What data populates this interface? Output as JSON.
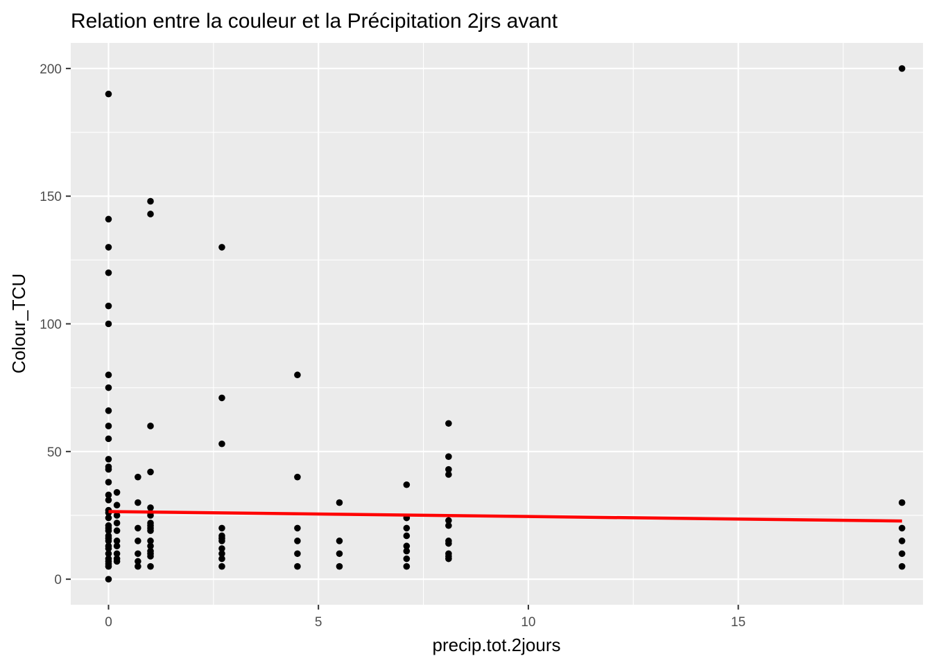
{
  "chart_data": {
    "type": "scatter",
    "title": "Relation entre la couleur et la Précipitation 2jrs avant",
    "xlabel": "precip.tot.2jours",
    "ylabel": "Colour_TCU",
    "xlim": [
      -0.9,
      19.4
    ],
    "ylim": [
      -10,
      210
    ],
    "x_ticks": [
      0,
      5,
      10,
      15
    ],
    "x_tick_labels": [
      "0",
      "5",
      "10",
      "15"
    ],
    "y_ticks": [
      0,
      50,
      100,
      150,
      200
    ],
    "y_tick_labels": [
      "0",
      "50",
      "100",
      "150",
      "200"
    ],
    "grid": true,
    "legend": "none",
    "colors": {
      "panel": "#ebebeb",
      "grid": "#ffffff",
      "points": "#000000",
      "trend": "#ff0000"
    },
    "points": [
      [
        0,
        190
      ],
      [
        0,
        141
      ],
      [
        0,
        130
      ],
      [
        0,
        120
      ],
      [
        0,
        107
      ],
      [
        0,
        100
      ],
      [
        0,
        80
      ],
      [
        0,
        75
      ],
      [
        0,
        66
      ],
      [
        0,
        60
      ],
      [
        0,
        55
      ],
      [
        0,
        47
      ],
      [
        0,
        44
      ],
      [
        0,
        43
      ],
      [
        0,
        38
      ],
      [
        0,
        33
      ],
      [
        0,
        31
      ],
      [
        0,
        27
      ],
      [
        0,
        26
      ],
      [
        0,
        24
      ],
      [
        0,
        21
      ],
      [
        0,
        20
      ],
      [
        0,
        19
      ],
      [
        0,
        17
      ],
      [
        0,
        16
      ],
      [
        0,
        15
      ],
      [
        0,
        13
      ],
      [
        0,
        12
      ],
      [
        0,
        10
      ],
      [
        0,
        8
      ],
      [
        0,
        7
      ],
      [
        0,
        6
      ],
      [
        0,
        5
      ],
      [
        0,
        0
      ],
      [
        0.2,
        34
      ],
      [
        0.2,
        29
      ],
      [
        0.2,
        25
      ],
      [
        0.2,
        22
      ],
      [
        0.2,
        19
      ],
      [
        0.2,
        15
      ],
      [
        0.2,
        13
      ],
      [
        0.2,
        10
      ],
      [
        0.2,
        8
      ],
      [
        0.2,
        7
      ],
      [
        0.7,
        40
      ],
      [
        0.7,
        30
      ],
      [
        0.7,
        20
      ],
      [
        0.7,
        15
      ],
      [
        0.7,
        10
      ],
      [
        0.7,
        7
      ],
      [
        0.7,
        5
      ],
      [
        1,
        148
      ],
      [
        1,
        143
      ],
      [
        1,
        60
      ],
      [
        1,
        42
      ],
      [
        1,
        28
      ],
      [
        1,
        26
      ],
      [
        1,
        25
      ],
      [
        1,
        22
      ],
      [
        1,
        21
      ],
      [
        1,
        20
      ],
      [
        1,
        19
      ],
      [
        1,
        15
      ],
      [
        1,
        13
      ],
      [
        1,
        11
      ],
      [
        1,
        10
      ],
      [
        1,
        9
      ],
      [
        1,
        5
      ],
      [
        2.7,
        130
      ],
      [
        2.7,
        71
      ],
      [
        2.7,
        53
      ],
      [
        2.7,
        20
      ],
      [
        2.7,
        17
      ],
      [
        2.7,
        16
      ],
      [
        2.7,
        15
      ],
      [
        2.7,
        12
      ],
      [
        2.7,
        10
      ],
      [
        2.7,
        8
      ],
      [
        2.7,
        5
      ],
      [
        4.5,
        80
      ],
      [
        4.5,
        40
      ],
      [
        4.5,
        20
      ],
      [
        4.5,
        15
      ],
      [
        4.5,
        10
      ],
      [
        4.5,
        5
      ],
      [
        5.5,
        30
      ],
      [
        5.5,
        15
      ],
      [
        5.5,
        10
      ],
      [
        5.5,
        5
      ],
      [
        7.1,
        37
      ],
      [
        7.1,
        24
      ],
      [
        7.1,
        20
      ],
      [
        7.1,
        17
      ],
      [
        7.1,
        13
      ],
      [
        7.1,
        11
      ],
      [
        7.1,
        8
      ],
      [
        7.1,
        5
      ],
      [
        8.1,
        61
      ],
      [
        8.1,
        48
      ],
      [
        8.1,
        43
      ],
      [
        8.1,
        41
      ],
      [
        8.1,
        23
      ],
      [
        8.1,
        21
      ],
      [
        8.1,
        15
      ],
      [
        8.1,
        14
      ],
      [
        8.1,
        10
      ],
      [
        8.1,
        9
      ],
      [
        8.1,
        8
      ],
      [
        18.9,
        200
      ],
      [
        18.9,
        30
      ],
      [
        18.9,
        20
      ],
      [
        18.9,
        15
      ],
      [
        18.9,
        10
      ],
      [
        18.9,
        5
      ]
    ],
    "trend_line": {
      "x": [
        0,
        18.9
      ],
      "y": [
        26.5,
        22.8
      ]
    }
  }
}
